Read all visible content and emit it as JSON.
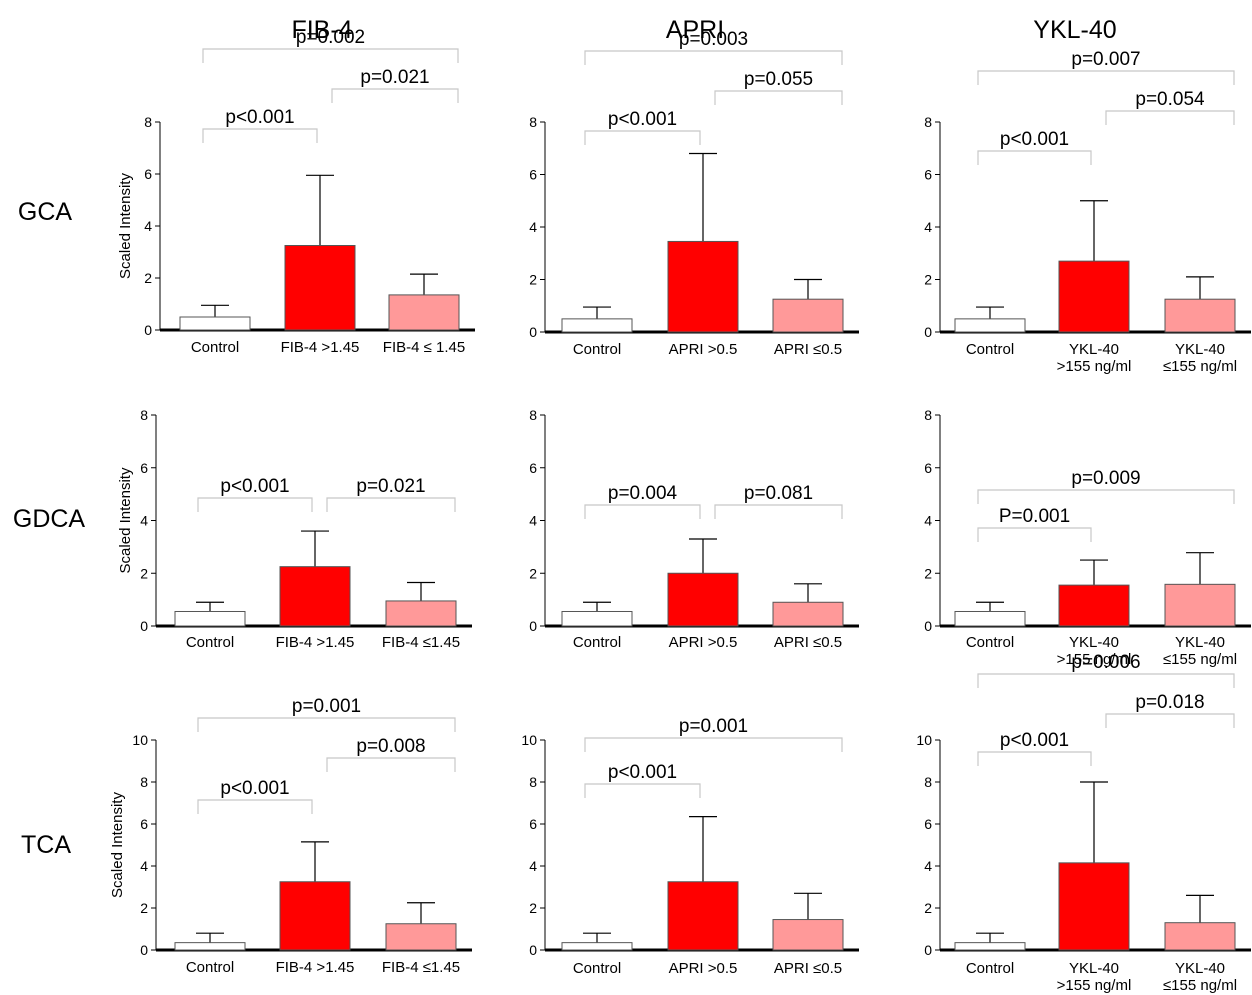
{
  "figure": {
    "col_titles": [
      "FIB-4",
      "APRI",
      "YKL-40"
    ],
    "row_labels": [
      "GCA",
      "GDCA",
      "TCA"
    ]
  },
  "colors": {
    "control": "#ffffff",
    "high": "#ff0000",
    "low": "#ff9999",
    "axis": "#000000",
    "bracket": "#c8c8c8"
  },
  "chart_data": [
    {
      "id": "gca-fib4",
      "type": "bar",
      "row": "GCA",
      "col": "FIB-4",
      "ylabel": "Scaled Intensity",
      "ylim": [
        0,
        8
      ],
      "yticks": [
        0,
        2,
        4,
        6,
        8
      ],
      "categories": [
        [
          "Control"
        ],
        [
          "FIB-4 >1.45"
        ],
        [
          "FIB-4 ≤ 1.45"
        ]
      ],
      "values": [
        0.5,
        3.25,
        1.35
      ],
      "errors": [
        0.45,
        2.7,
        0.8
      ],
      "comparisons": [
        {
          "from": 0,
          "to": 1,
          "label": "p<0.001"
        },
        {
          "from": 1,
          "to": 2,
          "label": "p=0.021"
        },
        {
          "from": 0,
          "to": 2,
          "label": "p=0.002"
        }
      ]
    },
    {
      "id": "gca-apri",
      "type": "bar",
      "row": "GCA",
      "col": "APRI",
      "ylabel": "",
      "ylim": [
        0,
        8
      ],
      "yticks": [
        0,
        2,
        4,
        6,
        8
      ],
      "categories": [
        [
          "Control"
        ],
        [
          "APRI >0.5"
        ],
        [
          "APRI ≤0.5"
        ]
      ],
      "values": [
        0.5,
        3.45,
        1.25
      ],
      "errors": [
        0.45,
        3.35,
        0.75
      ],
      "comparisons": [
        {
          "from": 0,
          "to": 1,
          "label": "p<0.001"
        },
        {
          "from": 1,
          "to": 2,
          "label": "p=0.055"
        },
        {
          "from": 0,
          "to": 2,
          "label": "p=0.003"
        }
      ]
    },
    {
      "id": "gca-ykl40",
      "type": "bar",
      "row": "GCA",
      "col": "YKL-40",
      "ylabel": "",
      "ylim": [
        0,
        8
      ],
      "yticks": [
        0,
        2,
        4,
        6,
        8
      ],
      "categories": [
        [
          "Control"
        ],
        [
          "YKL-40",
          ">155 ng/ml"
        ],
        [
          "YKL-40",
          "≤155 ng/ml"
        ]
      ],
      "values": [
        0.5,
        2.7,
        1.25
      ],
      "errors": [
        0.45,
        2.3,
        0.85
      ],
      "comparisons": [
        {
          "from": 0,
          "to": 1,
          "label": "p<0.001"
        },
        {
          "from": 1,
          "to": 2,
          "label": "p=0.054"
        },
        {
          "from": 0,
          "to": 2,
          "label": "p=0.007"
        }
      ]
    },
    {
      "id": "gdca-fib4",
      "type": "bar",
      "row": "GDCA",
      "col": "FIB-4",
      "ylabel": "Scaled Intensity",
      "ylim": [
        0,
        8
      ],
      "yticks": [
        0,
        2,
        4,
        6,
        8
      ],
      "categories": [
        [
          "Control"
        ],
        [
          "FIB-4 >1.45"
        ],
        [
          "FIB-4 ≤1.45"
        ]
      ],
      "values": [
        0.55,
        2.25,
        0.95
      ],
      "errors": [
        0.35,
        1.35,
        0.7
      ],
      "comparisons": [
        {
          "from": 0,
          "to": 1,
          "label": "p<0.001"
        },
        {
          "from": 1,
          "to": 2,
          "label": "p=0.021"
        }
      ]
    },
    {
      "id": "gdca-apri",
      "type": "bar",
      "row": "GDCA",
      "col": "APRI",
      "ylabel": "",
      "ylim": [
        0,
        8
      ],
      "yticks": [
        0,
        2,
        4,
        6,
        8
      ],
      "categories": [
        [
          "Control"
        ],
        [
          "APRI >0.5"
        ],
        [
          "APRI ≤0.5"
        ]
      ],
      "values": [
        0.55,
        2.0,
        0.9
      ],
      "errors": [
        0.35,
        1.3,
        0.7
      ],
      "comparisons": [
        {
          "from": 0,
          "to": 1,
          "label": "p=0.004"
        },
        {
          "from": 1,
          "to": 2,
          "label": "p=0.081"
        }
      ]
    },
    {
      "id": "gdca-ykl40",
      "type": "bar",
      "row": "GDCA",
      "col": "YKL-40",
      "ylabel": "",
      "ylim": [
        0,
        8
      ],
      "yticks": [
        0,
        2,
        4,
        6,
        8
      ],
      "categories": [
        [
          "Control"
        ],
        [
          "YKL-40",
          ">155 ng/ml"
        ],
        [
          "YKL-40",
          "≤155 ng/ml"
        ]
      ],
      "values": [
        0.55,
        1.55,
        1.58
      ],
      "errors": [
        0.35,
        0.95,
        1.2
      ],
      "comparisons": [
        {
          "from": 0,
          "to": 1,
          "label": "P=0.001"
        },
        {
          "from": 0,
          "to": 2,
          "label": "p=0.009"
        }
      ]
    },
    {
      "id": "tca-fib4",
      "type": "bar",
      "row": "TCA",
      "col": "FIB-4",
      "ylabel": "Scaled Intensity",
      "ylim": [
        0,
        10
      ],
      "yticks": [
        0,
        2,
        4,
        6,
        8,
        10
      ],
      "categories": [
        [
          "Control"
        ],
        [
          "FIB-4 >1.45"
        ],
        [
          "FIB-4 ≤1.45"
        ]
      ],
      "values": [
        0.35,
        3.25,
        1.25
      ],
      "errors": [
        0.45,
        1.9,
        1.0
      ],
      "comparisons": [
        {
          "from": 0,
          "to": 1,
          "label": "p<0.001"
        },
        {
          "from": 1,
          "to": 2,
          "label": "p=0.008"
        },
        {
          "from": 0,
          "to": 2,
          "label": "p=0.001"
        }
      ]
    },
    {
      "id": "tca-apri",
      "type": "bar",
      "row": "TCA",
      "col": "APRI",
      "ylabel": "",
      "ylim": [
        0,
        10
      ],
      "yticks": [
        0,
        2,
        4,
        6,
        8,
        10
      ],
      "categories": [
        [
          "Control"
        ],
        [
          "APRI >0.5"
        ],
        [
          "APRI ≤0.5"
        ]
      ],
      "values": [
        0.35,
        3.25,
        1.45
      ],
      "errors": [
        0.45,
        3.1,
        1.25
      ],
      "comparisons": [
        {
          "from": 0,
          "to": 1,
          "label": "p<0.001"
        },
        {
          "from": 0,
          "to": 2,
          "label": "p=0.001"
        }
      ]
    },
    {
      "id": "tca-ykl40",
      "type": "bar",
      "row": "TCA",
      "col": "YKL-40",
      "ylabel": "",
      "ylim": [
        0,
        10
      ],
      "yticks": [
        0,
        2,
        4,
        6,
        8,
        10
      ],
      "categories": [
        [
          "Control"
        ],
        [
          "YKL-40",
          ">155 ng/ml"
        ],
        [
          "YKL-40",
          "≤155 ng/ml"
        ]
      ],
      "values": [
        0.35,
        4.15,
        1.3
      ],
      "errors": [
        0.45,
        3.85,
        1.3
      ],
      "comparisons": [
        {
          "from": 0,
          "to": 1,
          "label": "p<0.001"
        },
        {
          "from": 1,
          "to": 2,
          "label": "p=0.018"
        },
        {
          "from": 0,
          "to": 2,
          "label": "p=0.006"
        }
      ]
    }
  ]
}
